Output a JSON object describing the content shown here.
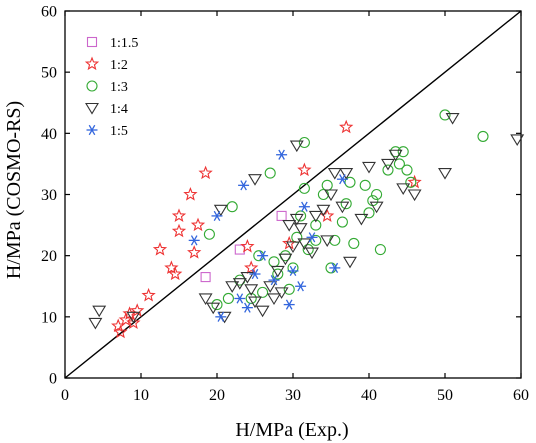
{
  "chart_data": {
    "type": "scatter",
    "xlabel": "H/MPa (Exp.)",
    "ylabel": "H/MPa (COSMO-RS)",
    "xlim": [
      0,
      60
    ],
    "ylim": [
      0,
      60
    ],
    "xticks": [
      0,
      10,
      20,
      30,
      40,
      50,
      60
    ],
    "yticks": [
      0,
      10,
      20,
      30,
      40,
      50,
      60
    ],
    "x_tick_labels": [
      "0",
      "10",
      "20",
      "30",
      "40",
      "50",
      "60"
    ],
    "y_tick_labels": [
      "0",
      "10",
      "20",
      "30",
      "40",
      "50",
      "60"
    ],
    "reference_line": {
      "from": [
        0,
        0
      ],
      "to": [
        60,
        60
      ],
      "color": "#000000"
    },
    "legend_position": "top-left",
    "series": [
      {
        "name": "1:1.5",
        "marker": "square",
        "color": "#cc66cc",
        "points": [
          [
            18.5,
            16.5
          ],
          [
            23,
            21
          ],
          [
            28.5,
            26.5
          ]
        ]
      },
      {
        "name": "1:2",
        "marker": "star",
        "color": "#ee3333",
        "points": [
          [
            7,
            8.5
          ],
          [
            7.3,
            7.5
          ],
          [
            8,
            9.5
          ],
          [
            8.5,
            10.5
          ],
          [
            9,
            9
          ],
          [
            9.5,
            11
          ],
          [
            11,
            13.5
          ],
          [
            12.5,
            21
          ],
          [
            14,
            18
          ],
          [
            14.5,
            17
          ],
          [
            15,
            26.5
          ],
          [
            15,
            24
          ],
          [
            16.5,
            30
          ],
          [
            17,
            20.5
          ],
          [
            17.5,
            25
          ],
          [
            18.5,
            33.5
          ],
          [
            24,
            21.5
          ],
          [
            24.5,
            18
          ],
          [
            29.5,
            22
          ],
          [
            31.5,
            34
          ],
          [
            34.5,
            26.5
          ],
          [
            37,
            41
          ],
          [
            46,
            32
          ]
        ]
      },
      {
        "name": "1:3",
        "marker": "circle",
        "color": "#33aa33",
        "points": [
          [
            19,
            23.5
          ],
          [
            20,
            12
          ],
          [
            21.5,
            13
          ],
          [
            22,
            28
          ],
          [
            23,
            16
          ],
          [
            24.5,
            13
          ],
          [
            25.5,
            20
          ],
          [
            26,
            14
          ],
          [
            27.5,
            19
          ],
          [
            27,
            33.5
          ],
          [
            28,
            17
          ],
          [
            29,
            20
          ],
          [
            29.5,
            14.5
          ],
          [
            30,
            18
          ],
          [
            30.5,
            23
          ],
          [
            31,
            26.5
          ],
          [
            31.5,
            31
          ],
          [
            31.5,
            38.5
          ],
          [
            32,
            21
          ],
          [
            33,
            25
          ],
          [
            33,
            22.5
          ],
          [
            34,
            30
          ],
          [
            34.5,
            31.5
          ],
          [
            35,
            18
          ],
          [
            35.5,
            22.5
          ],
          [
            36.5,
            25.5
          ],
          [
            37,
            28.5
          ],
          [
            37.5,
            32
          ],
          [
            38,
            22
          ],
          [
            39.5,
            31.5
          ],
          [
            40,
            27
          ],
          [
            40.5,
            29
          ],
          [
            41,
            30
          ],
          [
            41.5,
            21
          ],
          [
            42.5,
            34
          ],
          [
            43.5,
            37
          ],
          [
            44,
            35
          ],
          [
            44.5,
            37
          ],
          [
            45,
            34
          ],
          [
            45.5,
            32
          ],
          [
            50,
            43
          ],
          [
            55,
            39.5
          ]
        ]
      },
      {
        "name": "1:4",
        "marker": "triangle-down",
        "color": "#333333",
        "points": [
          [
            4,
            9
          ],
          [
            4.5,
            11
          ],
          [
            9,
            10
          ],
          [
            18.5,
            13
          ],
          [
            19.5,
            11.5
          ],
          [
            20.5,
            27.5
          ],
          [
            21,
            10
          ],
          [
            22,
            15
          ],
          [
            23,
            15.5
          ],
          [
            24,
            16.5
          ],
          [
            24.5,
            14.5
          ],
          [
            25,
            12.5
          ],
          [
            25,
            32.5
          ],
          [
            26,
            11
          ],
          [
            27,
            15
          ],
          [
            27.5,
            13
          ],
          [
            28,
            17.5
          ],
          [
            28.5,
            14
          ],
          [
            29,
            19.5
          ],
          [
            29.5,
            25
          ],
          [
            30,
            21.5
          ],
          [
            30.5,
            26
          ],
          [
            30.5,
            38
          ],
          [
            31,
            24.5
          ],
          [
            31.5,
            22
          ],
          [
            32.5,
            20.5
          ],
          [
            33,
            26.5
          ],
          [
            34,
            27.5
          ],
          [
            34.5,
            22.5
          ],
          [
            35,
            30
          ],
          [
            35.5,
            33.5
          ],
          [
            36.5,
            28
          ],
          [
            37,
            33.5
          ],
          [
            37.5,
            19
          ],
          [
            39,
            26
          ],
          [
            40,
            34.5
          ],
          [
            41,
            28
          ],
          [
            42.5,
            35
          ],
          [
            43.5,
            36.5
          ],
          [
            44.5,
            31
          ],
          [
            46,
            30
          ],
          [
            50,
            33.5
          ],
          [
            51,
            42.5
          ],
          [
            59.5,
            39
          ]
        ]
      },
      {
        "name": "1:5",
        "marker": "asterisk",
        "color": "#3366dd",
        "points": [
          [
            17,
            22.5
          ],
          [
            20,
            26.5
          ],
          [
            20.5,
            10
          ],
          [
            23,
            13
          ],
          [
            23.5,
            31.5
          ],
          [
            24,
            11.5
          ],
          [
            25,
            17
          ],
          [
            26,
            20
          ],
          [
            27.5,
            16
          ],
          [
            28.5,
            36.5
          ],
          [
            29.5,
            12
          ],
          [
            30,
            17.5
          ],
          [
            31,
            15
          ],
          [
            31.5,
            28
          ],
          [
            32.5,
            23
          ],
          [
            35.5,
            18
          ],
          [
            36.5,
            32.5
          ]
        ]
      }
    ]
  }
}
